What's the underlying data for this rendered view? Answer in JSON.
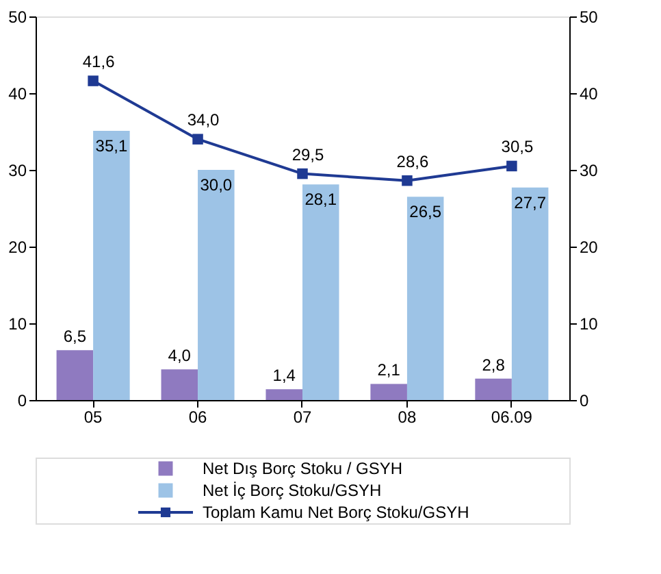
{
  "chart_data": {
    "type": "bar",
    "categories": [
      "05",
      "06",
      "07",
      "08",
      "06.09"
    ],
    "series": [
      {
        "name": "Net Dış Borç Stoku / GSYH",
        "color": "#8f7ac0",
        "values": [
          6.5,
          4.0,
          1.4,
          2.1,
          2.8
        ],
        "value_labels": [
          "6,5",
          "4,0",
          "1,4",
          "2,1",
          "2,8"
        ]
      },
      {
        "name": "Net İç Borç Stoku/GSYH",
        "color": "#9dc3e6",
        "values": [
          35.1,
          30.0,
          28.1,
          26.5,
          27.7
        ],
        "value_labels": [
          "35,1",
          "30,0",
          "28,1",
          "26,5",
          "27,7"
        ]
      },
      {
        "name": "Toplam Kamu Net Borç Stoku/GSYH",
        "type": "line",
        "axis": "y2",
        "color": "#1f3a93",
        "values": [
          41.6,
          34.0,
          29.5,
          28.6,
          30.5
        ],
        "value_labels": [
          "41,6",
          "34,0",
          "29,5",
          "28,6",
          "30,5"
        ]
      }
    ],
    "ylim": [
      0,
      50
    ],
    "yticks": [
      0,
      10,
      20,
      30,
      40,
      50
    ],
    "y2lim": [
      0,
      50
    ],
    "y2ticks": [
      0,
      10,
      20,
      30,
      40,
      50
    ],
    "marker": "square",
    "grid": false,
    "legend": "bottom"
  }
}
